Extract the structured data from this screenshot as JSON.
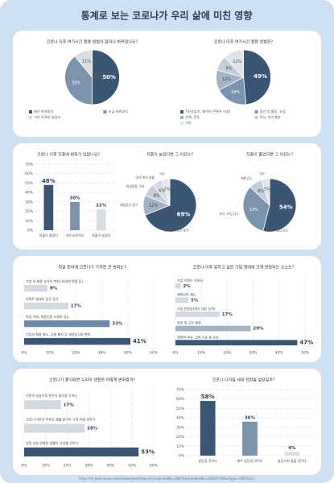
{
  "title": "통계로 보는 코로나가 우리 삶에 미친 영향",
  "source": "https://m.post.naver.com/viewer/postView.nhn?volumeNo=28674&memberNo=44020708&vType=VERTICAL",
  "chart_data": [
    {
      "type": "pie",
      "title": "코로나 이후 여가시간 활용 방법이 얼마나 바뀌었나요?",
      "legend": "bottom",
      "categories": [
        "매우 바뀌었다",
        "조금 바뀌었다",
        "거의 바뀌지 않았다"
      ],
      "values": [
        50,
        39,
        11
      ],
      "value_labels": [
        "50%",
        "39%",
        "11%"
      ],
      "colors": [
        "#3b5575",
        "#7c93ad",
        "#d9dee5"
      ]
    },
    {
      "type": "pie",
      "title": "코로나 이후 여가시간 활용 방법은?",
      "legend": "bottom",
      "categories": [
        "TV(유튜브, 웨어브 콘텐츠 시청)",
        "집안 밖 활동, 쇼핑",
        "산책, 운동",
        "독서, 자기계발",
        "기타"
      ],
      "values": [
        49,
        19,
        12,
        9,
        12
      ],
      "value_labels": [
        "49%",
        "19%",
        "12%",
        "9%",
        "12%"
      ],
      "colors": [
        "#3b5575",
        "#7c93ad",
        "#a3b3c6",
        "#c3ceda",
        "#dfe4ea"
      ]
    },
    {
      "type": "vbar",
      "title": "코로나 이후 지출에 변화가 있었나요?",
      "categories": [
        "지출이 줄었다",
        "거의 비슷하다",
        "지출이 늘었다"
      ],
      "values": [
        48,
        30,
        22
      ],
      "value_labels": [
        "48%",
        "30%",
        "22%"
      ],
      "colors": [
        "#3b5575",
        "#7c93ad",
        "#d9dee5"
      ],
      "ylim": [
        0,
        70
      ],
      "yticks": [
        {
          "value": 0,
          "label": "0%"
        },
        {
          "value": 10,
          "label": "10%"
        },
        {
          "value": 20,
          "label": "20%"
        },
        {
          "value": 30,
          "label": "30%"
        },
        {
          "value": 40,
          "label": "40%"
        },
        {
          "value": 50,
          "label": "50%"
        },
        {
          "value": 60,
          "label": "60%"
        },
        {
          "value": 70,
          "label": "70%"
        }
      ]
    },
    {
      "type": "pie",
      "title": "지출이 늘었다면 그 이유는?",
      "legend": "slice",
      "categories": [
        "온라인 쇼핑의 증가",
        "배달음식 증가",
        "위생용품 구매",
        "여가·취미 생활",
        "기타"
      ],
      "values": [
        69,
        12,
        8,
        6,
        5
      ],
      "value_labels": [
        "69%",
        "12%",
        "8%",
        "6%",
        "5%"
      ],
      "colors": [
        "#3b5575",
        "#a3b3c6",
        "#c3ceda",
        "#d4dbe4",
        "#e6eaef"
      ]
    },
    {
      "type": "pie",
      "title": "지출이 줄었다면 그 이유는?",
      "legend": "slice",
      "categories": [
        "유흥장소 출입 감소",
        "외식, 모임 감소",
        "여행 감소",
        "기타"
      ],
      "values": [
        54,
        33,
        8,
        5
      ],
      "value_labels": [
        "54%",
        "33%",
        "8%",
        "5%"
      ],
      "colors": [
        "#3b5575",
        "#7c93ad",
        "#c3ceda",
        "#e0e5eb"
      ]
    },
    {
      "type": "hbar",
      "title": "취업 준비에 코로나가 가져온 큰 변화는?",
      "categories": [
        "기업 내 채용 방식의 변화 (비대면 면접 등)",
        "언택트 형태의 업무 증가",
        "취업 기회, 채용인원 자체의 감소",
        "기업의 채용 축소, 공채 폐지 등 채용방식의 변화"
      ],
      "values": [
        9,
        17,
        33,
        41
      ],
      "value_labels": [
        "9%",
        "17%",
        "33%",
        "41%"
      ],
      "colors": [
        "#d4dae2",
        "#d4dae2",
        "#6f88a6",
        "#3b5575"
      ],
      "xlim": [
        0,
        50
      ],
      "xticks": [
        {
          "value": 0,
          "label": "0%"
        },
        {
          "value": 10,
          "label": "10%"
        },
        {
          "value": 20,
          "label": "20%"
        },
        {
          "value": 30,
          "label": "30%"
        },
        {
          "value": 40,
          "label": "40%"
        },
        {
          "value": 50,
          "label": "50%"
        }
      ]
    },
    {
      "type": "hbar",
      "title": "코로나 이후 일하고 싶은 기업 형태에 크게 반영되는 요소는?",
      "categories": [
        "기업 브랜드 이미지",
        "재택근무 제도",
        "기업 안정성(위기 대응 능력)",
        "복지 및 근무 환경",
        "경제적 여유, 급여 수준 등 보상"
      ],
      "values": [
        2,
        5,
        17,
        29,
        47
      ],
      "value_labels": [
        "2%",
        "5%",
        "17%",
        "29%",
        "47%"
      ],
      "colors": [
        "#d4dae2",
        "#d4dae2",
        "#d4dae2",
        "#a3b3c6",
        "#3b5575"
      ],
      "xlim": [
        0,
        50
      ],
      "xticks": [
        {
          "value": 0,
          "label": "0%"
        },
        {
          "value": 10,
          "label": "10%"
        },
        {
          "value": 20,
          "label": "20%"
        },
        {
          "value": 30,
          "label": "30%"
        },
        {
          "value": 40,
          "label": "40%"
        },
        {
          "value": 50,
          "label": "50%"
        }
      ]
    },
    {
      "type": "hbar",
      "title": "코로나가 종식되면 우리의 생활은 어떻게 변화할까?",
      "categories": [
        "이전의 일상으로 완전히 돌아갈 것이다",
        "코로나 이전과 이후로 생활 방식이 크게 바뀔 것이다",
        "일정 부분 변화된 생활이 유지될 것이다"
      ],
      "values": [
        17,
        28,
        53
      ],
      "value_labels": [
        "17%",
        "28%",
        "53%"
      ],
      "colors": [
        "#d4dae2",
        "#d4dae2",
        "#3b5575"
      ],
      "xlim": [
        0,
        60
      ],
      "xticks": [
        {
          "value": 0,
          "label": "0%"
        },
        {
          "value": 10,
          "label": "10%"
        },
        {
          "value": 20,
          "label": "20%"
        },
        {
          "value": 30,
          "label": "30%"
        },
        {
          "value": 40,
          "label": "40%"
        },
        {
          "value": 50,
          "label": "50%"
        },
        {
          "value": 60,
          "label": "60%"
        }
      ]
    },
    {
      "type": "vbar",
      "title": "코로나 디지털 세대 전환을 앞당길까?",
      "categories": [
        "앞당길 것이다",
        "매우 앞당길 것이다",
        "앞당기지 않을 것이다"
      ],
      "values": [
        58,
        36,
        4
      ],
      "value_labels": [
        "58%",
        "36%",
        "4%"
      ],
      "colors": [
        "#3b5575",
        "#7c93ad",
        "#d9dee5"
      ],
      "ylim": [
        0,
        70
      ],
      "yticks": [
        {
          "value": 0,
          "label": "0%"
        },
        {
          "value": 10,
          "label": "10%"
        },
        {
          "value": 20,
          "label": "20%"
        },
        {
          "value": 30,
          "label": "30%"
        },
        {
          "value": 40,
          "label": "40%"
        },
        {
          "value": 50,
          "label": "50%"
        },
        {
          "value": 60,
          "label": "60%"
        },
        {
          "value": 70,
          "label": "70%"
        }
      ]
    }
  ]
}
